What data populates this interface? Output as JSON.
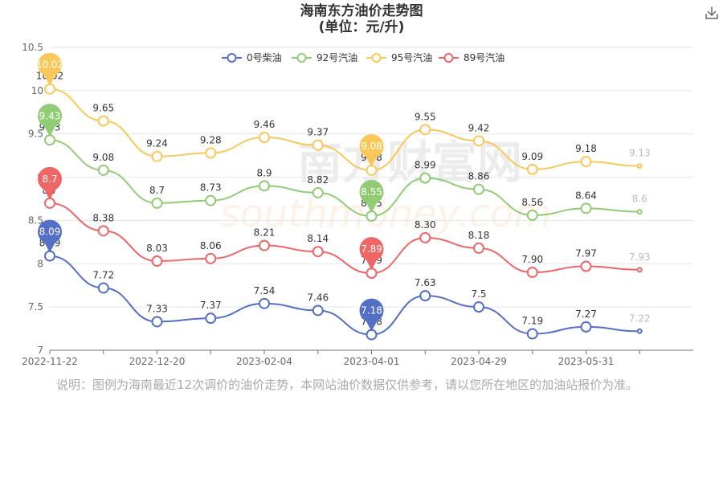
{
  "title_line1": "海南东方油价走势图",
  "title_line2": "(单位：元/升)",
  "footnote": "说明：图例为海南最近12次调价的油价走势，本网站油价数据仅供参考，请以您所在地区的加油站报价为准。",
  "watermark": {
    "cn": "南方财富网",
    "en": "southmoney.com"
  },
  "chart_data": {
    "type": "line",
    "title": "海南东方油价走势图",
    "subtitle": "(单位：元/升)",
    "ylim": [
      7,
      10.5
    ],
    "yticks": [
      "7",
      "7.5",
      "8",
      "8.5",
      "9",
      "9.5",
      "10",
      "10.5"
    ],
    "grid": true,
    "legend_position": "top-center",
    "x_tick_labels": [
      "2022-11-22",
      "",
      "2022-12-20",
      "",
      "2023-02-04",
      "",
      "2023-04-01",
      "",
      "2023-04-29",
      "",
      "2023-05-31",
      ""
    ],
    "series": [
      {
        "name": "0号柴油",
        "color": "#5470c6",
        "values": [
          8.09,
          7.72,
          7.33,
          7.37,
          7.54,
          7.46,
          7.18,
          7.63,
          7.5,
          7.19,
          7.27,
          7.22
        ],
        "labels": [
          "8.09",
          "7.72",
          "7.33",
          "7.37",
          "7.54",
          "7.46",
          "7.18",
          "7.63",
          "7.5",
          "7.19",
          "7.27",
          "7.22"
        ]
      },
      {
        "name": "92号汽油",
        "color": "#91cc75",
        "values": [
          9.43,
          9.08,
          8.7,
          8.73,
          8.9,
          8.82,
          8.55,
          8.99,
          8.86,
          8.56,
          8.64,
          8.6
        ],
        "labels": [
          "9.43",
          "9.08",
          "8.7",
          "8.73",
          "8.9",
          "8.82",
          "8.55",
          "8.99",
          "8.86",
          "8.56",
          "8.64",
          "8.6"
        ]
      },
      {
        "name": "95号汽油",
        "color": "#fac858",
        "values": [
          10.02,
          9.65,
          9.24,
          9.28,
          9.46,
          9.37,
          9.08,
          9.55,
          9.42,
          9.09,
          9.18,
          9.13
        ],
        "labels": [
          "10.02",
          "9.65",
          "9.24",
          "9.28",
          "9.46",
          "9.37",
          "9.08",
          "9.55",
          "9.42",
          "9.09",
          "9.18",
          "9.13"
        ]
      },
      {
        "name": "89号汽油",
        "color": "#ee6666",
        "values": [
          8.7,
          8.38,
          8.03,
          8.06,
          8.21,
          8.14,
          7.89,
          8.3,
          8.18,
          7.9,
          7.97,
          7.93
        ],
        "labels": [
          "8.7",
          "8.38",
          "8.03",
          "8.06",
          "8.21",
          "8.14",
          "7.89",
          "8.30",
          "8.18",
          "7.90",
          "7.97",
          "7.93"
        ]
      }
    ],
    "pins": [
      {
        "series": 0,
        "index": 0,
        "label": "8.09"
      },
      {
        "series": 0,
        "index": 6,
        "label": "7.18"
      },
      {
        "series": 1,
        "index": 0,
        "label": "9.43"
      },
      {
        "series": 1,
        "index": 6,
        "label": "8.55"
      },
      {
        "series": 2,
        "index": 0,
        "label": "10.02"
      },
      {
        "series": 2,
        "index": 6,
        "label": "9.08"
      },
      {
        "series": 3,
        "index": 0,
        "label": "8.7"
      },
      {
        "series": 3,
        "index": 6,
        "label": "7.89"
      }
    ]
  }
}
